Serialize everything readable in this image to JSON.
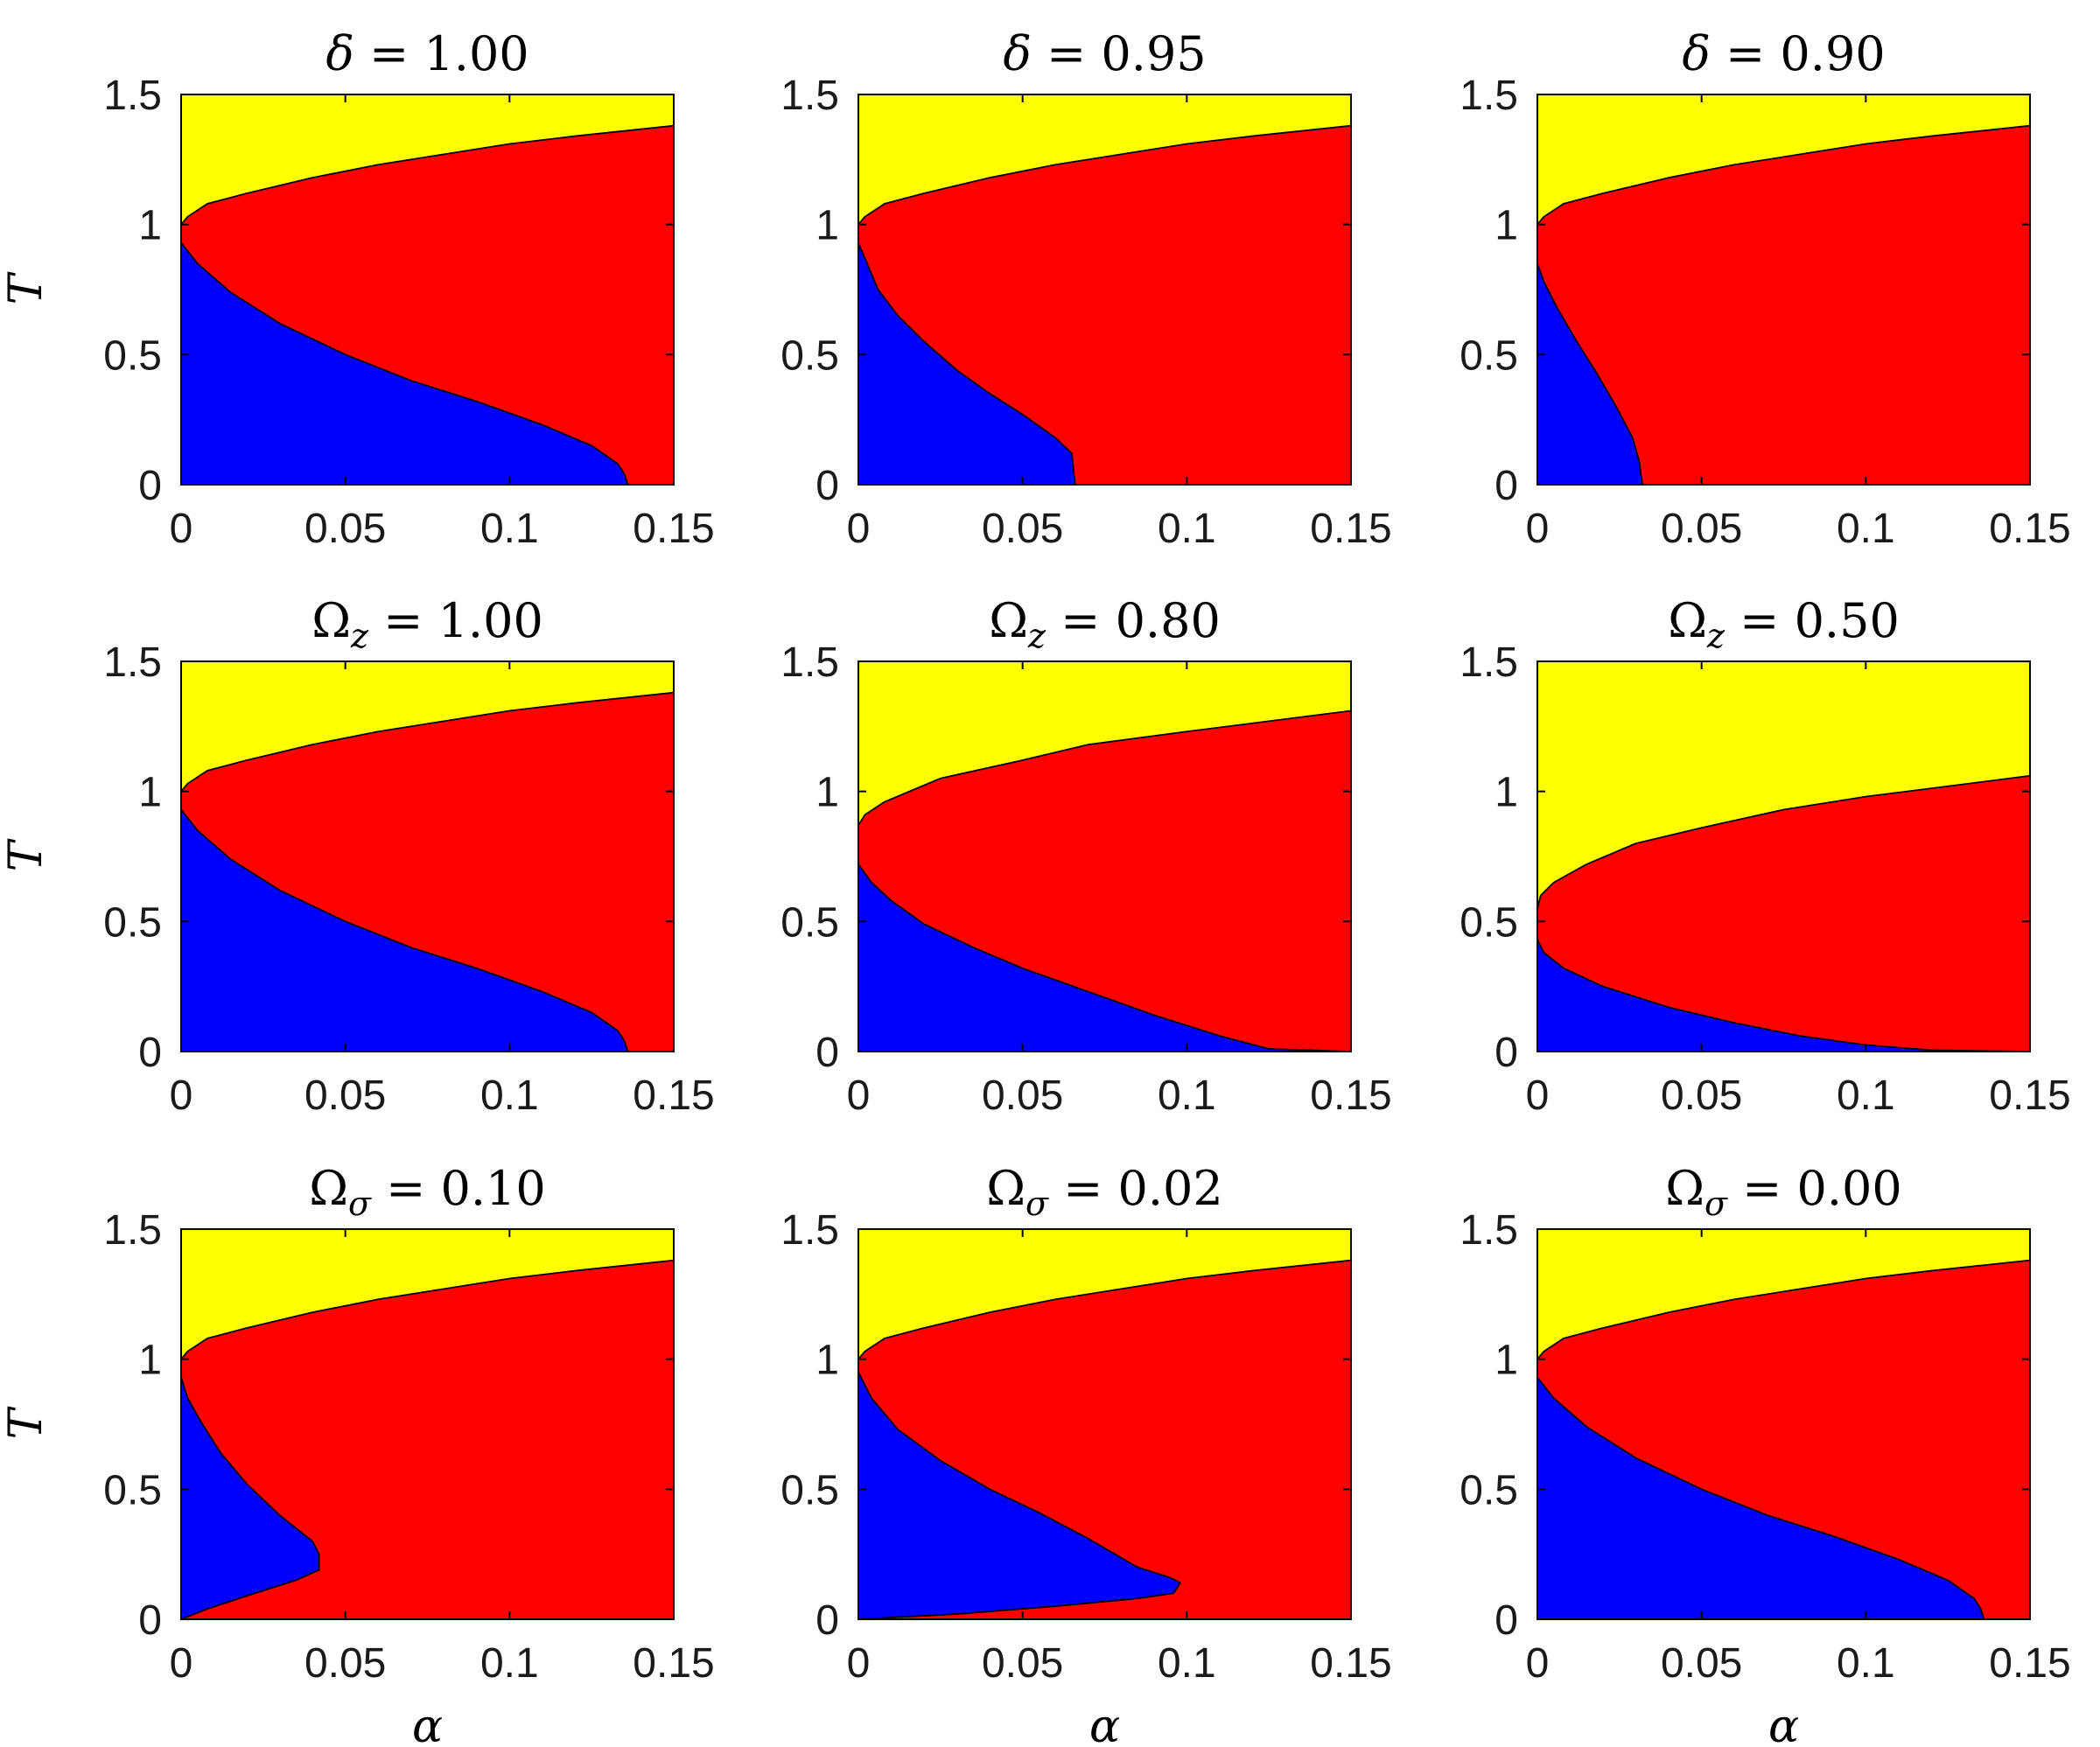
{
  "colors": {
    "paramagnetic": "#ffff00",
    "spin_glass": "#ff0000",
    "retrieval": "#0000ff",
    "boundary": "#000000",
    "axes": "#000000"
  },
  "chart_data": [
    {
      "type": "area",
      "title": "δ = 1.00",
      "xlabel": "",
      "ylabel": "T",
      "xlim": [
        0,
        0.15
      ],
      "ylim": [
        0,
        1.5
      ],
      "xticks": [
        0,
        0.05,
        0.1,
        0.15
      ],
      "yticks": [
        0,
        0.5,
        1,
        1.5
      ],
      "xtick_labels": [
        "0",
        "0.05",
        "0.1",
        "0.15"
      ],
      "ytick_labels": [
        "0",
        "0.5",
        "1",
        "1.5"
      ],
      "regions": {
        "upper": [
          [
            0,
            1
          ],
          [
            0.002,
            1.03
          ],
          [
            0.008,
            1.08
          ],
          [
            0.02,
            1.12
          ],
          [
            0.04,
            1.18
          ],
          [
            0.06,
            1.23
          ],
          [
            0.08,
            1.27
          ],
          [
            0.1,
            1.31
          ],
          [
            0.12,
            1.34
          ],
          [
            0.15,
            1.38
          ]
        ],
        "lower": [
          [
            0,
            0.93
          ],
          [
            0.005,
            0.85
          ],
          [
            0.015,
            0.74
          ],
          [
            0.03,
            0.62
          ],
          [
            0.05,
            0.5
          ],
          [
            0.07,
            0.4
          ],
          [
            0.09,
            0.32
          ],
          [
            0.11,
            0.23
          ],
          [
            0.125,
            0.15
          ],
          [
            0.133,
            0.08
          ],
          [
            0.135,
            0.04
          ],
          [
            0.136,
            0
          ]
        ]
      }
    },
    {
      "type": "area",
      "title": "δ = 0.95",
      "xlabel": "",
      "ylabel": "",
      "xlim": [
        0,
        0.15
      ],
      "ylim": [
        0,
        1.5
      ],
      "xticks": [
        0,
        0.05,
        0.1,
        0.15
      ],
      "yticks": [
        0,
        0.5,
        1,
        1.5
      ],
      "xtick_labels": [
        "0",
        "0.05",
        "0.1",
        "0.15"
      ],
      "ytick_labels": [
        "0",
        "0.5",
        "1",
        "1.5"
      ],
      "regions": {
        "upper": [
          [
            0,
            1
          ],
          [
            0.002,
            1.03
          ],
          [
            0.008,
            1.08
          ],
          [
            0.02,
            1.12
          ],
          [
            0.04,
            1.18
          ],
          [
            0.06,
            1.23
          ],
          [
            0.08,
            1.27
          ],
          [
            0.1,
            1.31
          ],
          [
            0.12,
            1.34
          ],
          [
            0.15,
            1.38
          ]
        ],
        "lower": [
          [
            0,
            0.93
          ],
          [
            0.002,
            0.87
          ],
          [
            0.006,
            0.75
          ],
          [
            0.012,
            0.65
          ],
          [
            0.02,
            0.55
          ],
          [
            0.03,
            0.44
          ],
          [
            0.04,
            0.35
          ],
          [
            0.05,
            0.27
          ],
          [
            0.06,
            0.18
          ],
          [
            0.065,
            0.12
          ],
          [
            0.066,
            0
          ]
        ]
      }
    },
    {
      "type": "area",
      "title": "δ = 0.90",
      "xlabel": "",
      "ylabel": "",
      "xlim": [
        0,
        0.15
      ],
      "ylim": [
        0,
        1.5
      ],
      "xticks": [
        0,
        0.05,
        0.1,
        0.15
      ],
      "yticks": [
        0,
        0.5,
        1,
        1.5
      ],
      "xtick_labels": [
        "0",
        "0.05",
        "0.1",
        "0.15"
      ],
      "ytick_labels": [
        "0",
        "0.5",
        "1",
        "1.5"
      ],
      "regions": {
        "upper": [
          [
            0,
            1
          ],
          [
            0.002,
            1.03
          ],
          [
            0.008,
            1.08
          ],
          [
            0.02,
            1.12
          ],
          [
            0.04,
            1.18
          ],
          [
            0.06,
            1.23
          ],
          [
            0.08,
            1.27
          ],
          [
            0.1,
            1.31
          ],
          [
            0.12,
            1.34
          ],
          [
            0.15,
            1.38
          ]
        ],
        "lower": [
          [
            0,
            0.85
          ],
          [
            0.002,
            0.78
          ],
          [
            0.006,
            0.68
          ],
          [
            0.012,
            0.55
          ],
          [
            0.018,
            0.43
          ],
          [
            0.024,
            0.3
          ],
          [
            0.029,
            0.18
          ],
          [
            0.031,
            0.09
          ],
          [
            0.032,
            0
          ]
        ]
      }
    },
    {
      "type": "area",
      "title": "Ω_z = 1.00",
      "xlabel": "",
      "ylabel": "T",
      "xlim": [
        0,
        0.15
      ],
      "ylim": [
        0,
        1.5
      ],
      "xticks": [
        0,
        0.05,
        0.1,
        0.15
      ],
      "yticks": [
        0,
        0.5,
        1,
        1.5
      ],
      "xtick_labels": [
        "0",
        "0.05",
        "0.1",
        "0.15"
      ],
      "ytick_labels": [
        "0",
        "0.5",
        "1",
        "1.5"
      ],
      "regions": {
        "upper": [
          [
            0,
            1
          ],
          [
            0.002,
            1.03
          ],
          [
            0.008,
            1.08
          ],
          [
            0.02,
            1.12
          ],
          [
            0.04,
            1.18
          ],
          [
            0.06,
            1.23
          ],
          [
            0.08,
            1.27
          ],
          [
            0.1,
            1.31
          ],
          [
            0.12,
            1.34
          ],
          [
            0.15,
            1.38
          ]
        ],
        "lower": [
          [
            0,
            0.93
          ],
          [
            0.005,
            0.85
          ],
          [
            0.015,
            0.74
          ],
          [
            0.03,
            0.62
          ],
          [
            0.05,
            0.5
          ],
          [
            0.07,
            0.4
          ],
          [
            0.09,
            0.32
          ],
          [
            0.11,
            0.23
          ],
          [
            0.125,
            0.15
          ],
          [
            0.133,
            0.08
          ],
          [
            0.135,
            0.04
          ],
          [
            0.136,
            0
          ]
        ]
      }
    },
    {
      "type": "area",
      "title": "Ω_z = 0.80",
      "xlabel": "",
      "ylabel": "",
      "xlim": [
        0,
        0.15
      ],
      "ylim": [
        0,
        1.5
      ],
      "xticks": [
        0,
        0.05,
        0.1,
        0.15
      ],
      "yticks": [
        0,
        0.5,
        1,
        1.5
      ],
      "xtick_labels": [
        "0",
        "0.05",
        "0.1",
        "0.15"
      ],
      "ytick_labels": [
        "0",
        "0.5",
        "1",
        "1.5"
      ],
      "regions": {
        "upper": [
          [
            0,
            0.87
          ],
          [
            0.002,
            0.91
          ],
          [
            0.008,
            0.96
          ],
          [
            0.025,
            1.05
          ],
          [
            0.05,
            1.12
          ],
          [
            0.07,
            1.18
          ],
          [
            0.1,
            1.23
          ],
          [
            0.125,
            1.27
          ],
          [
            0.15,
            1.31
          ]
        ],
        "lower": [
          [
            0,
            0.72
          ],
          [
            0.004,
            0.65
          ],
          [
            0.01,
            0.58
          ],
          [
            0.02,
            0.49
          ],
          [
            0.035,
            0.4
          ],
          [
            0.05,
            0.32
          ],
          [
            0.07,
            0.23
          ],
          [
            0.09,
            0.14
          ],
          [
            0.11,
            0.06
          ],
          [
            0.125,
            0.01
          ],
          [
            0.15,
            0
          ]
        ]
      }
    },
    {
      "type": "area",
      "title": "Ω_z = 0.50",
      "xlabel": "",
      "ylabel": "",
      "xlim": [
        0,
        0.15
      ],
      "ylim": [
        0,
        1.5
      ],
      "xticks": [
        0,
        0.05,
        0.1,
        0.15
      ],
      "yticks": [
        0,
        0.5,
        1,
        1.5
      ],
      "xtick_labels": [
        "0",
        "0.05",
        "0.1",
        "0.15"
      ],
      "ytick_labels": [
        "0",
        "0.5",
        "1",
        "1.5"
      ],
      "regions": {
        "upper": [
          [
            0,
            0.55
          ],
          [
            0.001,
            0.6
          ],
          [
            0.005,
            0.65
          ],
          [
            0.015,
            0.72
          ],
          [
            0.03,
            0.8
          ],
          [
            0.05,
            0.86
          ],
          [
            0.075,
            0.93
          ],
          [
            0.1,
            0.98
          ],
          [
            0.125,
            1.02
          ],
          [
            0.15,
            1.06
          ]
        ],
        "lower": [
          [
            0,
            0.43
          ],
          [
            0.002,
            0.38
          ],
          [
            0.008,
            0.32
          ],
          [
            0.02,
            0.25
          ],
          [
            0.04,
            0.17
          ],
          [
            0.06,
            0.11
          ],
          [
            0.08,
            0.06
          ],
          [
            0.1,
            0.025
          ],
          [
            0.12,
            0.005
          ],
          [
            0.15,
            0
          ]
        ]
      }
    },
    {
      "type": "area",
      "title": "Ω_σ = 0.10",
      "xlabel": "α",
      "ylabel": "T",
      "xlim": [
        0,
        0.15
      ],
      "ylim": [
        0,
        1.5
      ],
      "xticks": [
        0,
        0.05,
        0.1,
        0.15
      ],
      "yticks": [
        0,
        0.5,
        1,
        1.5
      ],
      "xtick_labels": [
        "0",
        "0.05",
        "0.1",
        "0.15"
      ],
      "ytick_labels": [
        "0",
        "0.5",
        "1",
        "1.5"
      ],
      "regions": {
        "upper": [
          [
            0,
            1
          ],
          [
            0.002,
            1.03
          ],
          [
            0.008,
            1.08
          ],
          [
            0.02,
            1.12
          ],
          [
            0.04,
            1.18
          ],
          [
            0.06,
            1.23
          ],
          [
            0.08,
            1.27
          ],
          [
            0.1,
            1.31
          ],
          [
            0.12,
            1.34
          ],
          [
            0.15,
            1.38
          ]
        ],
        "lower": [
          [
            0,
            0.93
          ],
          [
            0.002,
            0.85
          ],
          [
            0.006,
            0.76
          ],
          [
            0.012,
            0.64
          ],
          [
            0.02,
            0.52
          ],
          [
            0.03,
            0.4
          ],
          [
            0.04,
            0.3
          ],
          [
            0.042,
            0.25
          ],
          [
            0.042,
            0.19
          ],
          [
            0.035,
            0.15
          ],
          [
            0.02,
            0.09
          ],
          [
            0.008,
            0.04
          ],
          [
            0,
            0
          ]
        ]
      }
    },
    {
      "type": "area",
      "title": "Ω_σ = 0.02",
      "xlabel": "α",
      "ylabel": "",
      "xlim": [
        0,
        0.15
      ],
      "ylim": [
        0,
        1.5
      ],
      "xticks": [
        0,
        0.05,
        0.1,
        0.15
      ],
      "yticks": [
        0,
        0.5,
        1,
        1.5
      ],
      "xtick_labels": [
        "0",
        "0.05",
        "0.1",
        "0.15"
      ],
      "ytick_labels": [
        "0",
        "0.5",
        "1",
        "1.5"
      ],
      "regions": {
        "upper": [
          [
            0,
            1
          ],
          [
            0.002,
            1.03
          ],
          [
            0.008,
            1.08
          ],
          [
            0.02,
            1.12
          ],
          [
            0.04,
            1.18
          ],
          [
            0.06,
            1.23
          ],
          [
            0.08,
            1.27
          ],
          [
            0.1,
            1.31
          ],
          [
            0.12,
            1.34
          ],
          [
            0.15,
            1.38
          ]
        ],
        "lower": [
          [
            0,
            0.95
          ],
          [
            0.004,
            0.85
          ],
          [
            0.012,
            0.73
          ],
          [
            0.025,
            0.61
          ],
          [
            0.04,
            0.5
          ],
          [
            0.055,
            0.41
          ],
          [
            0.07,
            0.31
          ],
          [
            0.085,
            0.2
          ],
          [
            0.095,
            0.16
          ],
          [
            0.098,
            0.14
          ],
          [
            0.096,
            0.1
          ],
          [
            0.085,
            0.08
          ],
          [
            0.06,
            0.05
          ],
          [
            0.03,
            0.02
          ],
          [
            0,
            0
          ]
        ]
      }
    },
    {
      "type": "area",
      "title": "Ω_σ = 0.00",
      "xlabel": "α",
      "ylabel": "",
      "xlim": [
        0,
        0.15
      ],
      "ylim": [
        0,
        1.5
      ],
      "xticks": [
        0,
        0.05,
        0.1,
        0.15
      ],
      "yticks": [
        0,
        0.5,
        1,
        1.5
      ],
      "xtick_labels": [
        "0",
        "0.05",
        "0.1",
        "0.15"
      ],
      "ytick_labels": [
        "0",
        "0.5",
        "1",
        "1.5"
      ],
      "regions": {
        "upper": [
          [
            0,
            1
          ],
          [
            0.002,
            1.03
          ],
          [
            0.008,
            1.08
          ],
          [
            0.02,
            1.12
          ],
          [
            0.04,
            1.18
          ],
          [
            0.06,
            1.23
          ],
          [
            0.08,
            1.27
          ],
          [
            0.1,
            1.31
          ],
          [
            0.12,
            1.34
          ],
          [
            0.15,
            1.38
          ]
        ],
        "lower": [
          [
            0,
            0.93
          ],
          [
            0.005,
            0.85
          ],
          [
            0.015,
            0.74
          ],
          [
            0.03,
            0.62
          ],
          [
            0.05,
            0.5
          ],
          [
            0.07,
            0.4
          ],
          [
            0.09,
            0.32
          ],
          [
            0.11,
            0.23
          ],
          [
            0.125,
            0.15
          ],
          [
            0.133,
            0.08
          ],
          [
            0.135,
            0.04
          ],
          [
            0.136,
            0
          ]
        ]
      }
    }
  ]
}
